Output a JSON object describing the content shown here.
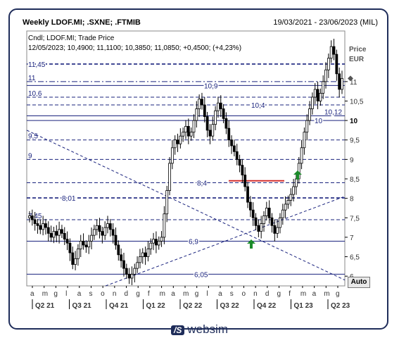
{
  "header": {
    "title": "Weekly LDOF.MI; .SXNE; .FTMIB",
    "date_range": "19/03/2021 - 23/06/2023 (MIL)"
  },
  "info": {
    "line1": "Cndl; LDOF.MI; Trade Price",
    "line2": "12/05/2023; 10,4900; 11,1100; 10,3850; 11,0850; +0,4500; (+4,23%)"
  },
  "axis": {
    "price_label": "Price",
    "currency_label": "EUR",
    "auto_label": "Auto"
  },
  "brand": {
    "logo": "/S",
    "name": "websim"
  },
  "chart_data": {
    "type": "candlestick",
    "title": "Weekly LDOF.MI; .SXNE; .FTMIB",
    "ylabel": "Price EUR",
    "ylim": [
      5.75,
      12.3
    ],
    "y_ticks": [
      "6",
      "6,5",
      "7",
      "7,5",
      "8",
      "8,5",
      "9",
      "9,5",
      "10",
      "10,5",
      "11"
    ],
    "month_ticks": [
      "a",
      "m",
      "g",
      "l",
      "a",
      "s",
      "o",
      "n",
      "d",
      "g",
      "f",
      "m",
      "a",
      "m",
      "g",
      "l",
      "a",
      "s",
      "o",
      "n",
      "d",
      "g",
      "f",
      "m",
      "a",
      "m",
      "g"
    ],
    "quarter_ticks": [
      "Q2 21",
      "Q3 21",
      "Q4 21",
      "Q1 22",
      "Q2 22",
      "Q3 22",
      "Q4 22",
      "Q1 23",
      "Q2 23"
    ],
    "last_close": "11,0850",
    "horizontal_levels": [
      {
        "value": 11.45,
        "label": "11,45",
        "style": "dashed"
      },
      {
        "value": 11.0,
        "label": "11",
        "style": "dashdot"
      },
      {
        "value": 10.9,
        "label": "10,9",
        "style": "solid"
      },
      {
        "value": 10.6,
        "label": "10,6",
        "style": "dashed"
      },
      {
        "value": 10.4,
        "label": "10,4",
        "style": "dashed"
      },
      {
        "value": 10.12,
        "label": "10,12",
        "style": "solid"
      },
      {
        "value": 10.0,
        "label": "10",
        "style": "solid"
      },
      {
        "value": 9.5,
        "label": "9,5",
        "style": "dashed"
      },
      {
        "value": 9.0,
        "label": "9",
        "style": "dashed"
      },
      {
        "value": 8.4,
        "label": "8,4",
        "style": "dashed"
      },
      {
        "value": 8.01,
        "label": "8,01",
        "style": "dashed"
      },
      {
        "value": 7.45,
        "label": "7,45",
        "style": "dashed"
      },
      {
        "value": 6.9,
        "label": "6,9",
        "style": "solid"
      },
      {
        "value": 6.05,
        "label": "6,05",
        "style": "solid"
      }
    ],
    "closes": [
      7.55,
      7.45,
      7.35,
      7.3,
      7.2,
      7.35,
      7.25,
      7.1,
      7.0,
      7.15,
      7.05,
      7.2,
      7.1,
      6.95,
      6.85,
      6.6,
      6.3,
      6.45,
      6.7,
      6.9,
      6.8,
      6.75,
      6.9,
      7.05,
      7.2,
      7.3,
      7.15,
      7.05,
      7.25,
      7.35,
      7.2,
      7.05,
      6.8,
      6.55,
      6.4,
      6.2,
      6.05,
      5.95,
      6.05,
      6.2,
      6.35,
      6.5,
      6.6,
      6.5,
      6.7,
      6.85,
      6.95,
      6.8,
      6.9,
      7.0,
      7.6,
      8.2,
      8.9,
      9.3,
      9.5,
      9.4,
      9.6,
      9.7,
      9.85,
      9.6,
      9.7,
      10.0,
      10.3,
      10.55,
      10.4,
      10.1,
      9.75,
      9.6,
      9.9,
      10.25,
      10.45,
      10.3,
      10.05,
      9.8,
      9.5,
      9.35,
      9.2,
      9.0,
      8.85,
      8.6,
      8.3,
      7.9,
      7.7,
      7.5,
      7.3,
      7.15,
      7.35,
      7.55,
      7.75,
      7.5,
      7.3,
      7.1,
      7.25,
      7.5,
      7.7,
      7.85,
      7.95,
      8.1,
      8.3,
      8.5,
      8.9,
      9.3,
      9.7,
      10.0,
      10.3,
      10.6,
      10.8,
      10.5,
      10.7,
      11.0,
      11.3,
      11.6,
      11.9,
      11.7,
      11.2,
      10.8,
      11.08
    ],
    "annotations": [
      {
        "type": "trendline",
        "note": "falling trendline"
      },
      {
        "type": "trendline",
        "note": "rising trendline"
      },
      {
        "type": "arrow",
        "direction": "up"
      },
      {
        "type": "arrow",
        "direction": "up"
      }
    ]
  }
}
